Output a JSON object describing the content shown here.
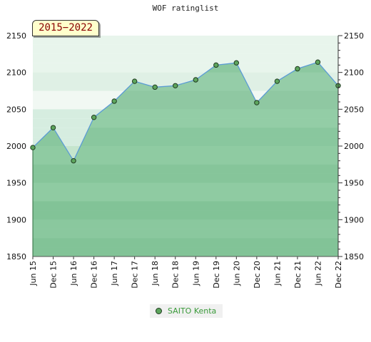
{
  "title": "WOF ratinglist",
  "period_badge": "2015−2022",
  "chart_data": {
    "type": "area",
    "title": "WOF ratinglist",
    "xlabel": "",
    "ylabel": "",
    "categories": [
      "Jun 15",
      "Dec 15",
      "Jun 16",
      "Dec 16",
      "Jun 17",
      "Dec 17",
      "Jun 18",
      "Dec 18",
      "Jun 19",
      "Dec 19",
      "Jun 20",
      "Dec 20",
      "Jun 21",
      "Dec 21",
      "Jun 22",
      "Dec 22"
    ],
    "series": [
      {
        "name": "SAITO Kenta",
        "values": [
          1998,
          2025,
          1980,
          2039,
          2061,
          2088,
          2080,
          2082,
          2090,
          2110,
          2113,
          2059,
          2088,
          2105,
          2114,
          2082
        ]
      }
    ],
    "ylim": [
      1850,
      2150
    ],
    "yticks": [
      1850,
      1900,
      1950,
      2000,
      2050,
      2100,
      2150
    ],
    "grid": false,
    "legend_position": "bottom-center",
    "colors": {
      "line": "#5b9bd5",
      "marker": "#5da55d",
      "area": "#7cc293",
      "legend_text": "#3a9a3a"
    }
  },
  "legend": {
    "label": "SAITO Kenta"
  }
}
